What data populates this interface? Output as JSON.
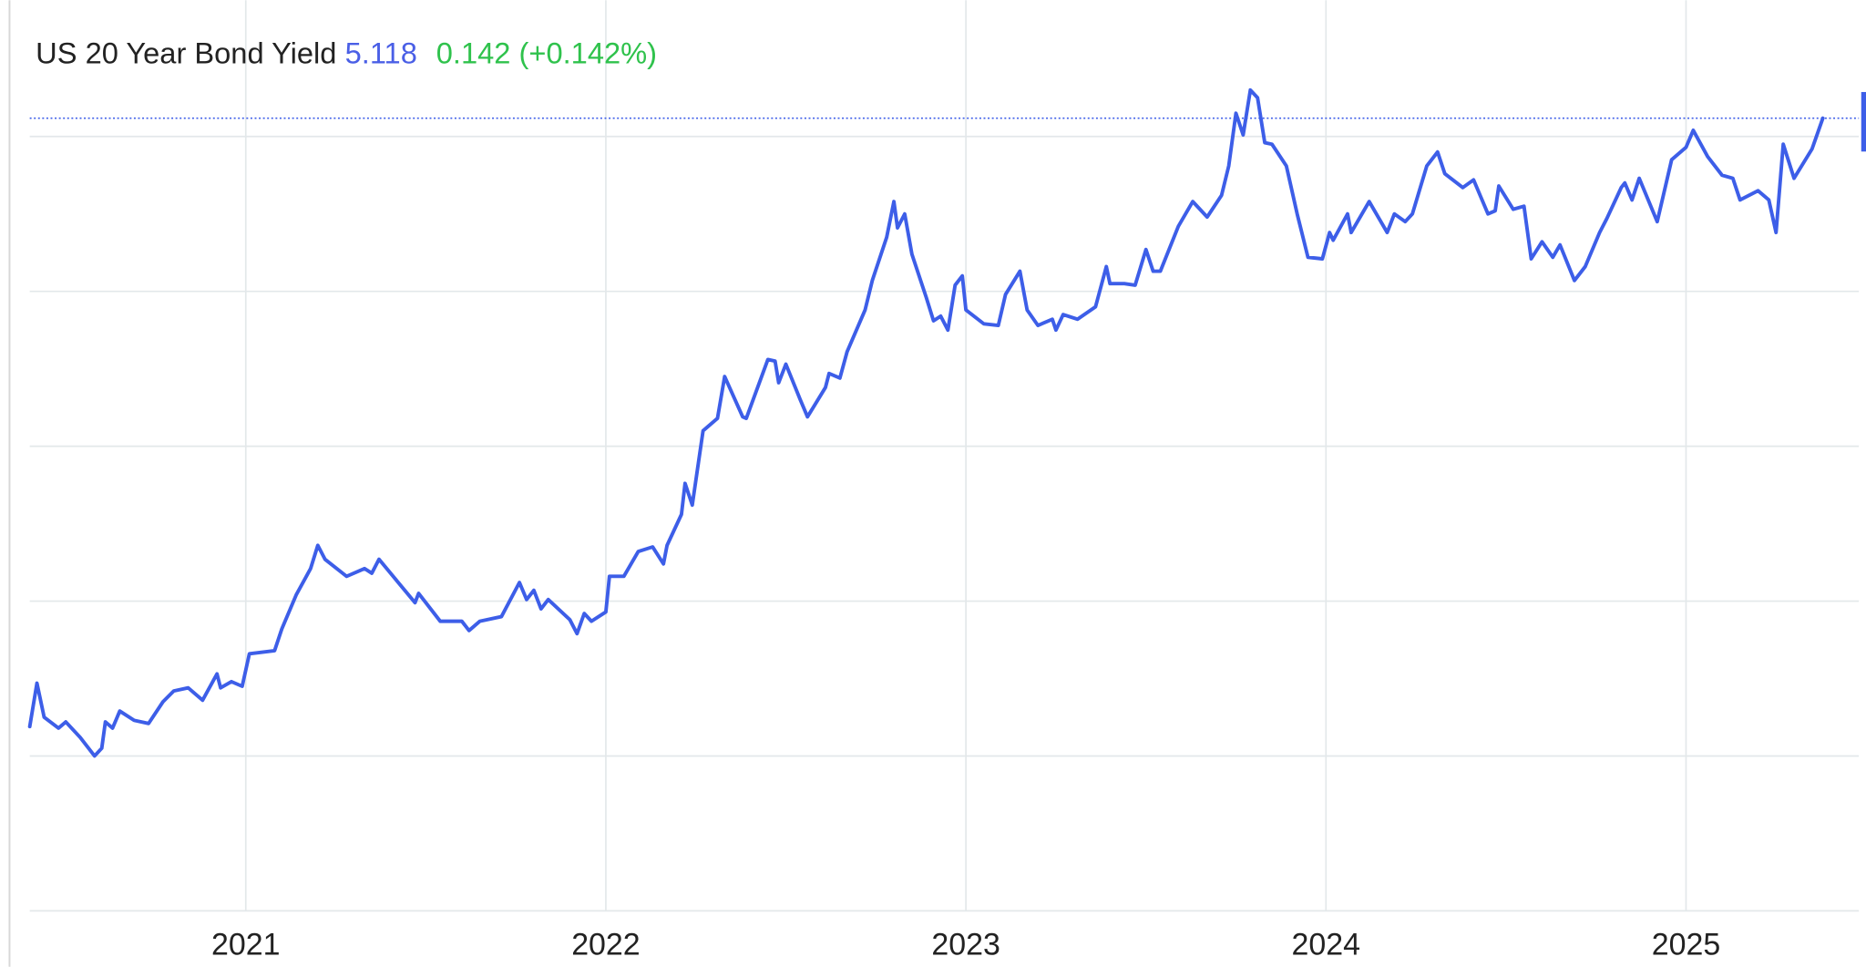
{
  "chart_data": {
    "type": "line",
    "title": "US 20 Year Bond Yield",
    "last_value": "5.118",
    "change": "0.142 (+0.142%)",
    "color": "#3d5ee8",
    "xlim": [
      2020.4,
      2025.48
    ],
    "xticks": [
      2021,
      2022,
      2023,
      2024,
      2025
    ],
    "ylim": [
      0,
      5.88
    ],
    "yticks": [
      0,
      1,
      2,
      3,
      4,
      5
    ],
    "grid": true,
    "x": [
      2020.4,
      2020.42,
      2020.44,
      2020.48,
      2020.5,
      2020.54,
      2020.58,
      2020.6,
      2020.61,
      2020.63,
      2020.65,
      2020.69,
      2020.73,
      2020.77,
      2020.8,
      2020.84,
      2020.88,
      2020.92,
      2020.93,
      2020.96,
      2020.99,
      2021.01,
      2021.08,
      2021.1,
      2021.14,
      2021.18,
      2021.2,
      2021.22,
      2021.28,
      2021.33,
      2021.35,
      2021.37,
      2021.42,
      2021.47,
      2021.48,
      2021.54,
      2021.6,
      2021.62,
      2021.65,
      2021.71,
      2021.76,
      2021.78,
      2021.8,
      2021.82,
      2021.84,
      2021.9,
      2021.92,
      2021.94,
      2021.96,
      2022.0,
      2022.01,
      2022.05,
      2022.09,
      2022.13,
      2022.16,
      2022.17,
      2022.21,
      2022.22,
      2022.24,
      2022.27,
      2022.31,
      2022.33,
      2022.38,
      2022.39,
      2022.45,
      2022.47,
      2022.48,
      2022.5,
      2022.54,
      2022.56,
      2022.61,
      2022.62,
      2022.65,
      2022.67,
      2022.72,
      2022.74,
      2022.78,
      2022.8,
      2022.81,
      2022.83,
      2022.85,
      2022.89,
      2022.91,
      2022.93,
      2022.95,
      2022.97,
      2022.99,
      2023.0,
      2023.05,
      2023.09,
      2023.11,
      2023.15,
      2023.17,
      2023.2,
      2023.24,
      2023.25,
      2023.27,
      2023.31,
      2023.36,
      2023.39,
      2023.4,
      2023.44,
      2023.47,
      2023.5,
      2023.52,
      2023.54,
      2023.59,
      2023.63,
      2023.67,
      2023.71,
      2023.73,
      2023.75,
      2023.77,
      2023.79,
      2023.81,
      2023.83,
      2023.85,
      2023.89,
      2023.92,
      2023.95,
      2023.99,
      2024.01,
      2024.02,
      2024.06,
      2024.07,
      2024.12,
      2024.17,
      2024.19,
      2024.22,
      2024.24,
      2024.28,
      2024.31,
      2024.33,
      2024.38,
      2024.41,
      2024.45,
      2024.47,
      2024.48,
      2024.52,
      2024.55,
      2024.57,
      2024.6,
      2024.63,
      2024.65,
      2024.69,
      2024.72,
      2024.76,
      2024.78,
      2024.82,
      2024.83,
      2024.85,
      2024.87,
      2024.92,
      2024.96,
      2025.0,
      2025.02,
      2025.06,
      2025.1,
      2025.13,
      2025.15,
      2025.2,
      2025.23,
      2025.25,
      2025.27,
      2025.3,
      2025.35,
      2025.38
    ],
    "values": [
      1.19,
      1.47,
      1.25,
      1.18,
      1.22,
      1.12,
      1.0,
      1.05,
      1.22,
      1.18,
      1.29,
      1.23,
      1.21,
      1.35,
      1.42,
      1.44,
      1.36,
      1.53,
      1.44,
      1.48,
      1.45,
      1.66,
      1.68,
      1.82,
      2.04,
      2.21,
      2.36,
      2.27,
      2.16,
      2.21,
      2.18,
      2.27,
      2.13,
      1.99,
      2.05,
      1.87,
      1.87,
      1.81,
      1.87,
      1.9,
      2.12,
      2.01,
      2.07,
      1.95,
      2.01,
      1.88,
      1.79,
      1.92,
      1.87,
      1.93,
      2.16,
      2.16,
      2.32,
      2.35,
      2.24,
      2.36,
      2.56,
      2.76,
      2.62,
      3.1,
      3.18,
      3.45,
      3.19,
      3.18,
      3.56,
      3.55,
      3.41,
      3.53,
      3.3,
      3.19,
      3.38,
      3.47,
      3.44,
      3.61,
      3.88,
      4.07,
      4.35,
      4.58,
      4.41,
      4.5,
      4.24,
      3.96,
      3.81,
      3.84,
      3.75,
      4.04,
      4.1,
      3.88,
      3.79,
      3.78,
      3.98,
      4.13,
      3.88,
      3.78,
      3.82,
      3.75,
      3.85,
      3.82,
      3.9,
      4.16,
      4.05,
      4.05,
      4.04,
      4.27,
      4.13,
      4.13,
      4.42,
      4.58,
      4.48,
      4.62,
      4.81,
      5.15,
      5.01,
      5.3,
      5.25,
      4.96,
      4.95,
      4.81,
      4.5,
      4.22,
      4.21,
      4.38,
      4.33,
      4.5,
      4.38,
      4.58,
      4.38,
      4.5,
      4.45,
      4.5,
      4.81,
      4.9,
      4.76,
      4.67,
      4.72,
      4.5,
      4.52,
      4.68,
      4.53,
      4.55,
      4.21,
      4.32,
      4.22,
      4.3,
      4.07,
      4.16,
      4.38,
      4.47,
      4.67,
      4.7,
      4.59,
      4.73,
      4.45,
      4.85,
      4.93,
      5.04,
      4.87,
      4.75,
      4.73,
      4.59,
      4.65,
      4.59,
      4.38,
      4.95,
      4.73,
      4.92,
      5.118
    ]
  }
}
